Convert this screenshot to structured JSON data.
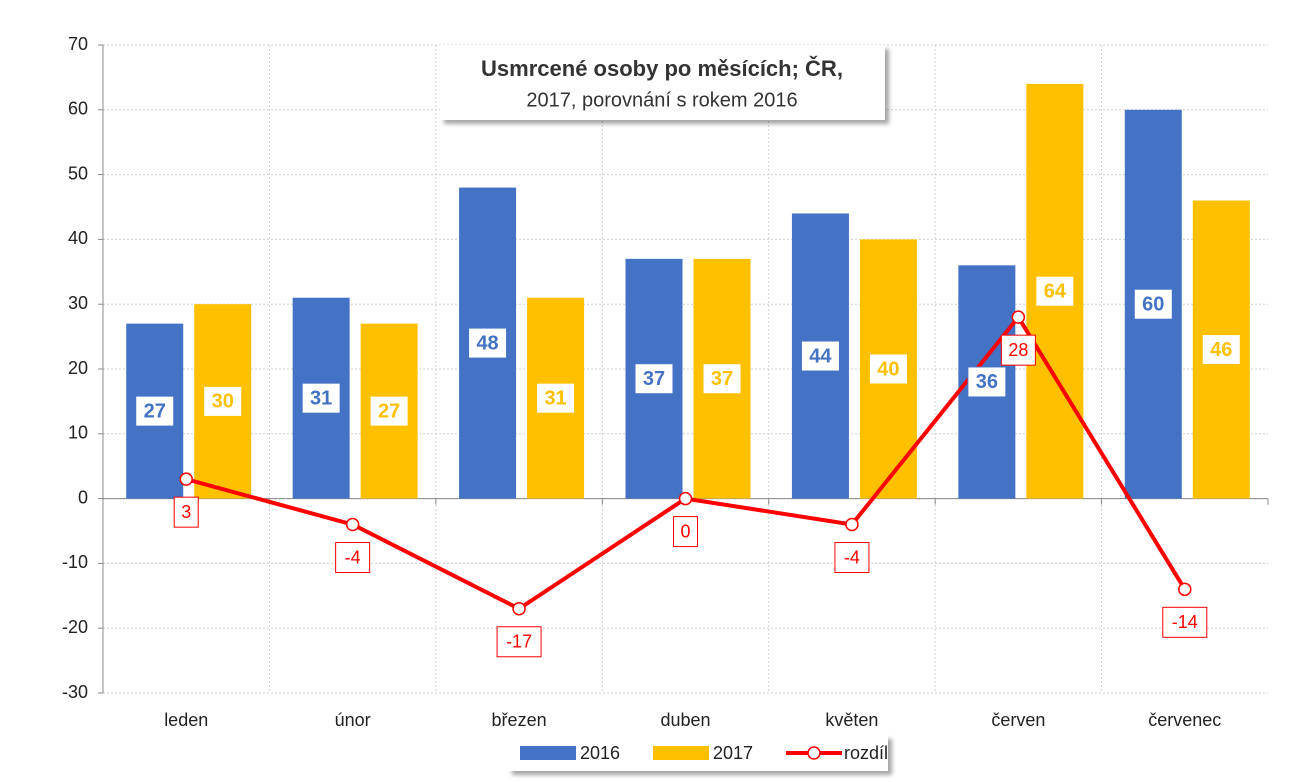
{
  "chart_data": {
    "type": "bar",
    "title": "Usmrcené osoby po měsících; ČR,",
    "subtitle": "2017, porovnání s rokem 2016",
    "categories": [
      "leden",
      "únor",
      "březen",
      "duben",
      "květen",
      "červen",
      "červenec"
    ],
    "series": [
      {
        "name": "2016",
        "color": "#4472c4",
        "values": [
          27,
          31,
          48,
          37,
          44,
          36,
          60
        ]
      },
      {
        "name": "2017",
        "color": "#ffc000",
        "values": [
          30,
          27,
          31,
          37,
          40,
          64,
          46
        ]
      },
      {
        "name": "rozdíl",
        "color": "#ff0000",
        "type": "line",
        "values": [
          3,
          -4,
          -17,
          0,
          -4,
          28,
          -14
        ]
      }
    ],
    "ylim": [
      -30,
      70
    ],
    "yticks": [
      -30,
      -20,
      -10,
      0,
      10,
      20,
      30,
      40,
      50,
      60,
      70
    ],
    "grid": true
  }
}
